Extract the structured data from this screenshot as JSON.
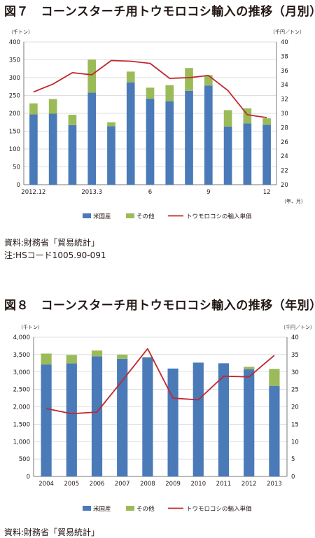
{
  "figure7": {
    "title": "図７　コーンスターチ用トウモロコシ輸入の推移（月別）",
    "source": "資料:財務省「貿易統計」",
    "note": "注:HSコード1005.90-091"
  },
  "figure8": {
    "title": "図８　コーンスターチ用トウモロコシ輸入の推移（年別）",
    "source": "資料:財務省「貿易統計」"
  },
  "colors": {
    "us": "#4a7ab8",
    "other": "#9bbb59",
    "price": "#c0282d",
    "grid": "#bfbfbf",
    "axis": "#595959"
  },
  "chart_data": [
    {
      "type": "bar",
      "stacked": true,
      "categories": [
        "2012.12",
        "",
        "",
        "2013.3",
        "",
        "",
        "6",
        "",
        "",
        "9",
        "",
        "",
        "12"
      ],
      "x_suffix": "（年、月）",
      "y_unit_left": "（千トン）",
      "y_unit_right": "（千円／トン）",
      "ylim_left": [
        0,
        400
      ],
      "ylim_right": [
        20,
        40
      ],
      "yticks_left": [
        0,
        50,
        100,
        150,
        200,
        250,
        300,
        350,
        400
      ],
      "yticks_right": [
        20,
        22,
        24,
        26,
        28,
        30,
        32,
        34,
        36,
        38,
        40
      ],
      "grid": true,
      "legend_position": "bottom",
      "series": [
        {
          "name": "米国産",
          "kind": "bar",
          "axis": "left",
          "values": [
            197,
            199,
            167,
            258,
            164,
            287,
            241,
            234,
            263,
            278,
            163,
            172,
            168
          ]
        },
        {
          "name": "その他",
          "kind": "bar",
          "axis": "left",
          "values": [
            31,
            41,
            29,
            93,
            11,
            30,
            31,
            45,
            64,
            29,
            46,
            42,
            18
          ]
        },
        {
          "name": "トウモロコシの輸入単価",
          "kind": "line",
          "axis": "right",
          "values": [
            33.0,
            34.1,
            35.7,
            35.4,
            37.4,
            37.3,
            37.0,
            34.9,
            35.0,
            35.3,
            33.2,
            29.8,
            29.4
          ]
        }
      ]
    },
    {
      "type": "bar",
      "stacked": true,
      "categories": [
        "2004",
        "2005",
        "2006",
        "2007",
        "2008",
        "2009",
        "2010",
        "2011",
        "2012",
        "2013"
      ],
      "x_suffix": "",
      "y_unit_left": "（千トン）",
      "y_unit_right": "（千円／トン）",
      "ylim_left": [
        0,
        4000
      ],
      "ylim_right": [
        0,
        40
      ],
      "yticks_left": [
        "0",
        "500",
        "1,000",
        "1,500",
        "2,000",
        "2,500",
        "3,000",
        "3,500",
        "4,000"
      ],
      "yticks_right": [
        0,
        5,
        10,
        15,
        20,
        25,
        30,
        35,
        40
      ],
      "grid": true,
      "legend_position": "bottom",
      "series": [
        {
          "name": "米国産",
          "kind": "bar",
          "axis": "left",
          "values": [
            3220,
            3250,
            3450,
            3380,
            3420,
            3100,
            3270,
            3250,
            3080,
            2600
          ]
        },
        {
          "name": "その他",
          "kind": "bar",
          "axis": "left",
          "values": [
            310,
            240,
            170,
            120,
            10,
            0,
            0,
            0,
            70,
            490
          ]
        },
        {
          "name": "トウモロコシの輸入単価",
          "kind": "line",
          "axis": "right",
          "values": [
            19.5,
            18.0,
            18.5,
            27.5,
            36.7,
            22.5,
            22.0,
            28.8,
            28.6,
            34.8
          ]
        }
      ]
    }
  ]
}
